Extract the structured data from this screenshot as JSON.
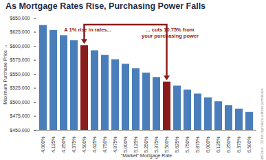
{
  "chart_data": {
    "type": "bar",
    "title": "As Mortgage Rates Rise, Purchasing Power Falls",
    "x_label": "“Market” Mortgage Rate",
    "y_label": "Maximum Purchase Price",
    "categories": [
      "4.000%",
      "4.125%",
      "4.250%",
      "4.375%",
      "4.500%",
      "4.625%",
      "4.750%",
      "4.875%",
      "5.000%",
      "5.125%",
      "5.250%",
      "5.375%",
      "5.500%",
      "5.625%",
      "5.750%",
      "5.875%",
      "6.000%",
      "6.125%",
      "6.250%",
      "6.375%",
      "6.500%"
    ],
    "values": [
      637000,
      628000,
      619000,
      610000,
      601000,
      592000,
      584000,
      576000,
      568000,
      560000,
      552000,
      544000,
      536000,
      529000,
      522000,
      515000,
      508000,
      501000,
      494000,
      488000,
      482000
    ],
    "colors": [
      "#4a7ebb",
      "#4a7ebb",
      "#4a7ebb",
      "#4a7ebb",
      "#8b1c1c",
      "#4a7ebb",
      "#4a7ebb",
      "#4a7ebb",
      "#4a7ebb",
      "#4a7ebb",
      "#4a7ebb",
      "#4a7ebb",
      "#8b1c1c",
      "#4a7ebb",
      "#4a7ebb",
      "#4a7ebb",
      "#4a7ebb",
      "#4a7ebb",
      "#4a7ebb",
      "#4a7ebb",
      "#4a7ebb"
    ],
    "ylim": [
      450000,
      650000
    ],
    "yticks": [
      {
        "value": 450000,
        "label": "$450,000"
      },
      {
        "value": 475000,
        "label": "$475,000"
      },
      {
        "value": 500000,
        "label": "$500,000"
      },
      {
        "value": 525000,
        "label": "$525,000"
      },
      {
        "value": 550000,
        "label": "$550,000"
      },
      {
        "value": 575000,
        "label": "$575,000"
      },
      {
        "value": 600000,
        "label": "$600,000"
      },
      {
        "value": 625000,
        "label": "$625,000"
      },
      {
        "value": 650000,
        "label": "$650,000"
      }
    ],
    "grid": false,
    "annotations": [
      "A 1% rise in rates...",
      "... cuts 10.75% from\nyour purchasing power",
      "©ChartForce   Do not reproduce without permission."
    ]
  }
}
